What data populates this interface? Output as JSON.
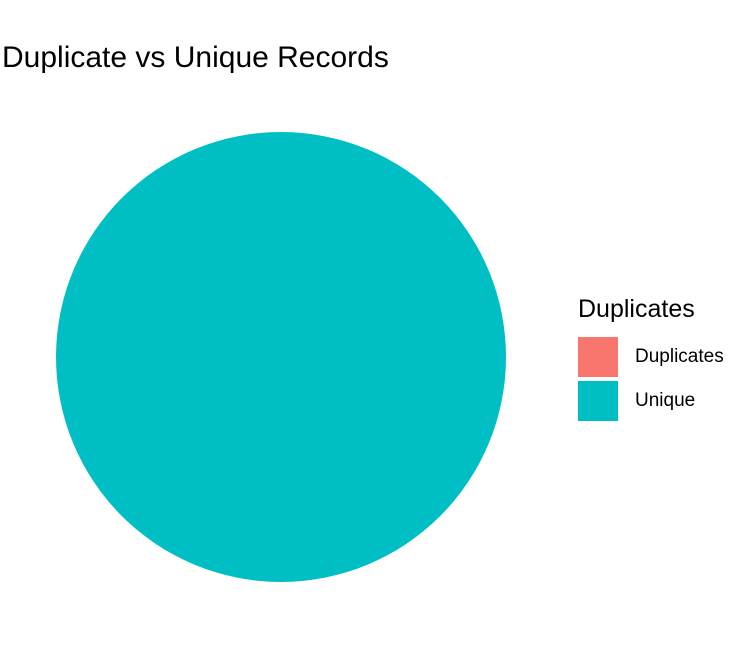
{
  "chart_data": {
    "type": "pie",
    "title": "Duplicate vs Unique Records",
    "legend_title": "Duplicates",
    "legend_position": "right",
    "categories": [
      "Duplicates",
      "Unique"
    ],
    "values": [
      0,
      100
    ],
    "colors": {
      "Duplicates": "#F8766D",
      "Unique": "#00BFC4"
    }
  }
}
